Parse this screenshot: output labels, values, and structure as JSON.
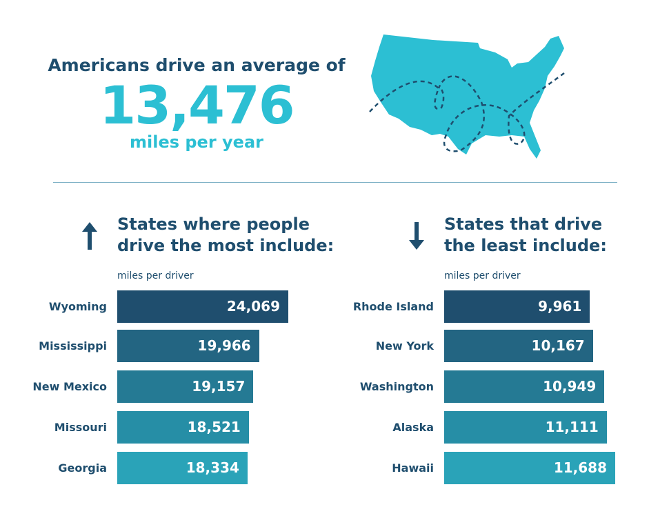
{
  "header": {
    "line1": "Americans drive an average of",
    "big_number": "13,476",
    "line3": "miles per year"
  },
  "map": {
    "icon": "us-map-with-dashed-route",
    "fill": "#2cbfd3",
    "route_color": "#1f4e6e"
  },
  "chart_data": [
    {
      "type": "bar",
      "orientation": "horizontal",
      "title": "States where people\ndrive the most include:",
      "icon": "arrow-up-icon",
      "unit_label": "miles per driver",
      "categories": [
        "Wyoming",
        "Mississippi",
        "New Mexico",
        "Missouri",
        "Georgia"
      ],
      "values": [
        24069,
        19966,
        19157,
        18521,
        18334
      ],
      "labels": [
        "24,069",
        "19,966",
        "19,157",
        "18,521",
        "18,334"
      ],
      "colors": [
        "#1f4e6e",
        "#236582",
        "#257a94",
        "#268ea6",
        "#2aa3b8"
      ]
    },
    {
      "type": "bar",
      "orientation": "horizontal",
      "title": "States that drive\nthe least include:",
      "icon": "arrow-down-icon",
      "unit_label": "miles per driver",
      "categories": [
        "Rhode Island",
        "New York",
        "Washington",
        "Alaska",
        "Hawaii"
      ],
      "values": [
        9961,
        10167,
        10949,
        11111,
        11688
      ],
      "labels": [
        "9,961",
        "10,167",
        "10,949",
        "11,111",
        "11,688"
      ],
      "colors": [
        "#1f4e6e",
        "#236582",
        "#257a94",
        "#268ea6",
        "#2aa3b8"
      ]
    }
  ]
}
